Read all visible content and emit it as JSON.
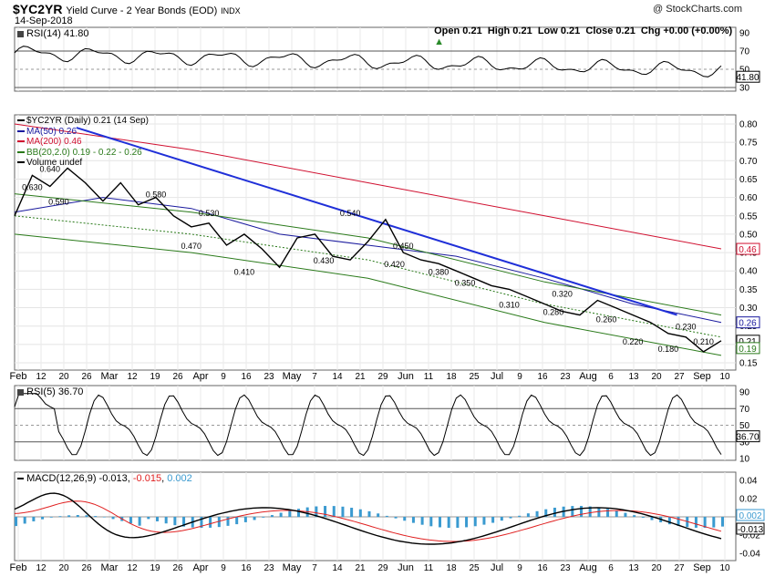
{
  "header": {
    "symbol": "$YC2YR",
    "title": "Yield Curve - 2 Year Bonds (EOD)",
    "exchange": "INDX",
    "date": "14-Sep-2018",
    "watermark": "@ StockCharts.com",
    "ohlc": "Open 0.21  High 0.21  Low 0.21  Close 0.21  Chg +0.00 (+0.00%)",
    "ohlc_arrow": "▲"
  },
  "colors": {
    "price": "#000000",
    "ma50": "#1a1a9e",
    "ma200": "#d01030",
    "bb": "#2a7a1a",
    "trend": "#1f2fd8",
    "rsi_fill": "#5a8a50",
    "rsi_low_fill": "#8a5a5a",
    "macd": "#000000",
    "signal": "#e02020",
    "hist": "#3a9ad0"
  },
  "rsi14": {
    "label": "RSI(14) 41.80",
    "value_tag": "41.80",
    "ticks": [
      "90",
      "70",
      "50",
      "30"
    ]
  },
  "price": {
    "legend": [
      {
        "text": "$YC2YR (Daily) 0.21 (14 Sep)",
        "color": "#000000"
      },
      {
        "text": "MA(50) 0.26",
        "color": "#1a1a9e"
      },
      {
        "text": "MA(200) 0.46",
        "color": "#d01030"
      },
      {
        "text": "BB(20,2.0) 0.19 - 0.22 - 0.26",
        "color": "#2a7a1a"
      },
      {
        "text": "Volume undef",
        "color": "#000000"
      }
    ],
    "ticks": [
      "0.80",
      "0.75",
      "0.70",
      "0.65",
      "0.60",
      "0.55",
      "0.50",
      "0.45",
      "0.40",
      "0.35",
      "0.30",
      "0.25",
      "0.20",
      "0.15"
    ],
    "tags": [
      "0.46",
      "0.26",
      "0.21",
      "0.19"
    ],
    "annotations": [
      "0.640",
      "0.630",
      "0.590",
      "0.580",
      "0.530",
      "0.470",
      "0.410",
      "0.540",
      "0.450",
      "0.430",
      "0.420",
      "0.380",
      "0.350",
      "0.310",
      "0.320",
      "0.280",
      "0.260",
      "0.230",
      "0.220",
      "0.180",
      "0.210"
    ]
  },
  "rsi5": {
    "label": "RSI(5) 36.70",
    "value_tag": "36.70",
    "ticks": [
      "90",
      "70",
      "50",
      "30",
      "10"
    ]
  },
  "macd": {
    "label_prefix": "MACD(12,26,9)",
    "value1": "-0.013",
    "value2": "-0.015",
    "value3": "0.002",
    "ticks": [
      "0.04",
      "0.02",
      "0.00",
      "-0.02",
      "-0.04"
    ],
    "tags": [
      "0.002",
      "-0.013"
    ]
  },
  "x_axis": [
    "Feb",
    "12",
    "20",
    "26",
    "Mar",
    "12",
    "19",
    "26",
    "Apr",
    "9",
    "16",
    "23",
    "May",
    "7",
    "14",
    "21",
    "29",
    "Jun",
    "11",
    "18",
    "25",
    "Jul",
    "9",
    "16",
    "23",
    "Aug",
    "6",
    "13",
    "20",
    "27",
    "Sep",
    "10"
  ],
  "chart_data": {
    "type": "line",
    "title": "Yield Curve - 2 Year Bonds (EOD)",
    "series": [
      {
        "name": "$YC2YR (Daily)",
        "x": [
          0,
          4,
          8,
          12,
          16,
          20,
          24,
          28,
          32,
          36,
          40,
          44,
          48,
          52,
          56,
          60,
          64,
          68,
          72,
          76,
          80,
          84,
          88,
          92,
          96,
          100,
          104,
          108,
          112,
          116,
          120,
          124,
          128,
          132,
          136,
          140,
          144,
          148,
          152,
          156,
          160
        ],
        "values": [
          0.55,
          0.66,
          0.63,
          0.68,
          0.64,
          0.59,
          0.64,
          0.58,
          0.6,
          0.55,
          0.52,
          0.53,
          0.47,
          0.5,
          0.46,
          0.41,
          0.49,
          0.5,
          0.44,
          0.43,
          0.48,
          0.54,
          0.45,
          0.43,
          0.42,
          0.4,
          0.38,
          0.36,
          0.35,
          0.33,
          0.31,
          0.29,
          0.28,
          0.32,
          0.3,
          0.28,
          0.26,
          0.23,
          0.22,
          0.18,
          0.21
        ]
      },
      {
        "name": "MA(50)",
        "x": [
          0,
          20,
          40,
          60,
          80,
          100,
          120,
          140,
          160
        ],
        "values": [
          0.56,
          0.6,
          0.57,
          0.5,
          0.47,
          0.44,
          0.38,
          0.31,
          0.26
        ]
      },
      {
        "name": "MA(200)",
        "x": [
          0,
          40,
          80,
          120,
          160
        ],
        "values": [
          0.8,
          0.73,
          0.64,
          0.55,
          0.46
        ]
      },
      {
        "name": "BB(20,2.0)",
        "x": [
          0,
          40,
          80,
          120,
          160
        ],
        "values": [
          0.55,
          0.5,
          0.43,
          0.31,
          0.22
        ]
      }
    ],
    "x_ticks": [
      "Feb",
      "Mar",
      "Apr",
      "May",
      "Jun",
      "Jul",
      "Aug",
      "Sep"
    ],
    "ylim": [
      0.15,
      0.8
    ],
    "grid": true,
    "legend": "top-left"
  }
}
